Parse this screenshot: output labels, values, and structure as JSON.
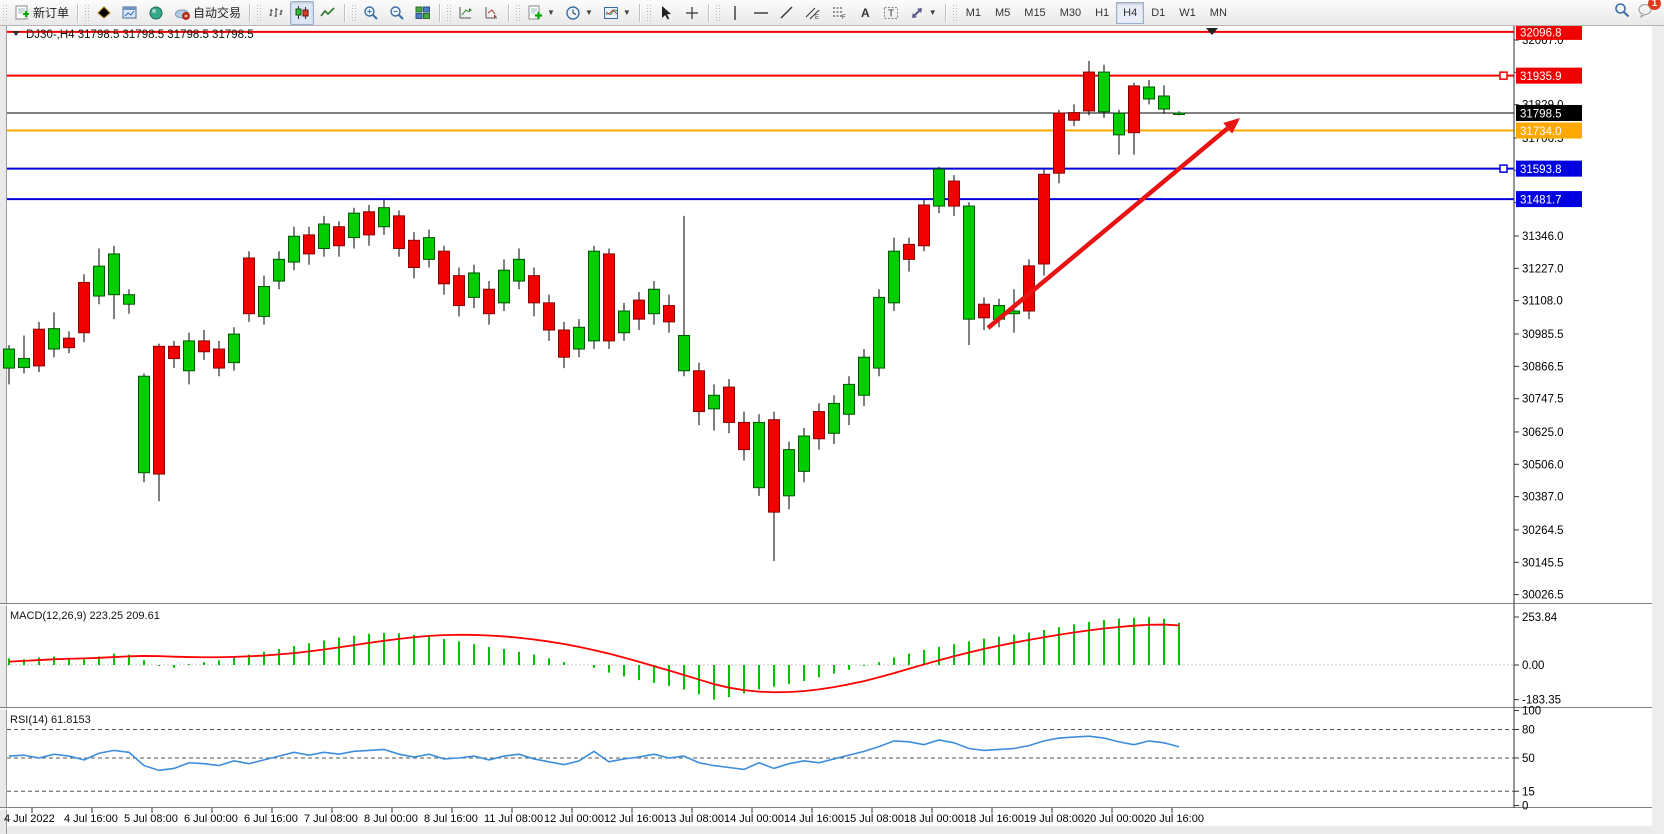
{
  "toolbar": {
    "groups": [
      {
        "items": [
          {
            "name": "new-order-button",
            "icon": "neworder",
            "label": "新订单"
          }
        ]
      },
      {
        "items": [
          {
            "name": "market-watch-button",
            "icon": "gold"
          },
          {
            "name": "data-window-button",
            "icon": "bluewin"
          },
          {
            "name": "navigator-button",
            "icon": "greenball"
          },
          {
            "name": "auto-trading-button",
            "icon": "cloud",
            "label": "自动交易"
          }
        ]
      },
      {
        "items": [
          {
            "name": "bar-chart-mode-button",
            "icon": "bars"
          },
          {
            "name": "candlestick-mode-button",
            "icon": "candles",
            "pressed": true
          },
          {
            "name": "line-chart-mode-button",
            "icon": "linechart"
          }
        ]
      },
      {
        "items": [
          {
            "name": "zoom-in-button",
            "icon": "zoomin"
          },
          {
            "name": "zoom-out-button",
            "icon": "zoomout"
          },
          {
            "name": "tile-windows-button",
            "icon": "tiles"
          }
        ]
      },
      {
        "items": [
          {
            "name": "arrange-charts-button",
            "icon": "arr1"
          },
          {
            "name": "shift-chart-button",
            "icon": "arr2"
          }
        ]
      },
      {
        "items": [
          {
            "name": "add-indicator-button",
            "icon": "addind",
            "caret": true
          },
          {
            "name": "period-button",
            "icon": "clock",
            "caret": true
          },
          {
            "name": "template-button",
            "icon": "template",
            "caret": true
          }
        ]
      },
      {
        "items": [
          {
            "name": "cursor-tool-button",
            "icon": "cursor"
          },
          {
            "name": "crosshair-tool-button",
            "icon": "crosshair"
          }
        ]
      },
      {
        "items": [
          {
            "name": "vertical-line-tool-button",
            "icon": "vline"
          },
          {
            "name": "horizontal-line-tool-button",
            "icon": "hline"
          },
          {
            "name": "trendline-tool-button",
            "icon": "tline"
          },
          {
            "name": "channel-tool-button",
            "icon": "channel"
          },
          {
            "name": "fibonacci-tool-button",
            "icon": "fibo"
          },
          {
            "name": "text-tool-button",
            "icon": "textA"
          },
          {
            "name": "label-tool-button",
            "icon": "labelT"
          },
          {
            "name": "shapes-tool-button",
            "icon": "shapes",
            "caret": true
          }
        ]
      }
    ],
    "timeframes": [
      {
        "label": "M1"
      },
      {
        "label": "M5"
      },
      {
        "label": "M15"
      },
      {
        "label": "M30"
      },
      {
        "label": "H1"
      },
      {
        "label": "H4",
        "pressed": true
      },
      {
        "label": "D1"
      },
      {
        "label": "W1"
      },
      {
        "label": "MN"
      }
    ],
    "search_icon": "search",
    "chat_badge_count": "1"
  },
  "chart": {
    "title": "DJ30-,H4  31798.5 31798.5 31798.5 31798.5",
    "symbol": "DJ30-",
    "timeframe": "H4",
    "colors": {
      "bull": "#00ce00",
      "bull_border": "#005500",
      "bear": "#f20000",
      "bear_border": "#8e0000",
      "wick": "#000000",
      "macd_hist": "#00c400",
      "macd_signal": "#ff0000",
      "rsi_line": "#3e8edd",
      "arrow": "#e81414"
    }
  },
  "levels": [
    {
      "price": 32096.8,
      "label": "32096.8",
      "color": "#f00000",
      "badge_bg": "#f00000",
      "width": 2,
      "marker": false
    },
    {
      "price": 31935.9,
      "label": "31935.9",
      "color": "#f00000",
      "badge_bg": "#f00000",
      "width": 2,
      "marker": true
    },
    {
      "price": 31798.5,
      "label": "31798.5",
      "color": "#000000",
      "badge_bg": "#000000",
      "width": 1,
      "marker": false
    },
    {
      "price": 31734.0,
      "label": "31734.0",
      "color": "#ffa800",
      "badge_bg": "#ffa800",
      "width": 2,
      "marker": false
    },
    {
      "price": 31593.8,
      "label": "31593.8",
      "color": "#0000e0",
      "badge_bg": "#0000e0",
      "width": 2,
      "marker": true
    },
    {
      "price": 31481.7,
      "label": "31481.7",
      "color": "#0000e0",
      "badge_bg": "#0000e0",
      "width": 2,
      "marker": false
    }
  ],
  "price_axis_ticks": [
    32067.0,
    31948.0,
    31829.0,
    31706.5,
    31587.5,
    31468.5,
    31346.0,
    31227.0,
    31108.0,
    30985.5,
    30866.5,
    30747.5,
    30625.0,
    30506.0,
    30387.0,
    30264.5,
    30145.5,
    30026.5
  ],
  "time_axis_labels": [
    "4 Jul 2022",
    "4 Jul 16:00",
    "5 Jul 08:00",
    "6 Jul 00:00",
    "6 Jul 16:00",
    "7 Jul 08:00",
    "8 Jul 00:00",
    "8 Jul 16:00",
    "11 Jul 08:00",
    "12 Jul 00:00",
    "12 Jul 16:00",
    "13 Jul 08:00",
    "14 Jul 00:00",
    "14 Jul 16:00",
    "15 Jul 08:00",
    "18 Jul 00:00",
    "18 Jul 16:00",
    "19 Jul 08:00",
    "20 Jul 00:00",
    "20 Jul 16:00"
  ],
  "chart_data": {
    "type": "candlestick",
    "symbol": "DJ30-",
    "timeframe": "H4",
    "current_price": 31798.5,
    "ohlc": [
      [
        30860,
        30945,
        30800,
        30930
      ],
      [
        30862,
        30980,
        30840,
        30895
      ],
      [
        31003,
        31030,
        30845,
        30868
      ],
      [
        30930,
        31065,
        30900,
        31005
      ],
      [
        30970,
        30995,
        30915,
        30935
      ],
      [
        31175,
        31205,
        30955,
        30990
      ],
      [
        31125,
        31300,
        31095,
        31235
      ],
      [
        31130,
        31310,
        31040,
        31280
      ],
      [
        31095,
        31150,
        31060,
        31130
      ],
      [
        30475,
        30840,
        30440,
        30830
      ],
      [
        30940,
        30950,
        30370,
        30470
      ],
      [
        30940,
        30960,
        30860,
        30895
      ],
      [
        30850,
        30990,
        30800,
        30960
      ],
      [
        30960,
        31000,
        30890,
        30920
      ],
      [
        30930,
        30960,
        30830,
        30860
      ],
      [
        30880,
        31010,
        30850,
        30985
      ],
      [
        31265,
        31290,
        31030,
        31060
      ],
      [
        31050,
        31200,
        31020,
        31160
      ],
      [
        31180,
        31290,
        31150,
        31260
      ],
      [
        31250,
        31380,
        31220,
        31345
      ],
      [
        31350,
        31380,
        31240,
        31280
      ],
      [
        31300,
        31420,
        31270,
        31390
      ],
      [
        31380,
        31400,
        31270,
        31310
      ],
      [
        31340,
        31450,
        31300,
        31430
      ],
      [
        31435,
        31460,
        31310,
        31350
      ],
      [
        31380,
        31480,
        31350,
        31450
      ],
      [
        31420,
        31440,
        31270,
        31300
      ],
      [
        31330,
        31360,
        31190,
        31230
      ],
      [
        31260,
        31370,
        31230,
        31340
      ],
      [
        31290,
        31310,
        31130,
        31170
      ],
      [
        31200,
        31230,
        31050,
        31090
      ],
      [
        31120,
        31240,
        31080,
        31210
      ],
      [
        31150,
        31180,
        31020,
        31060
      ],
      [
        31100,
        31260,
        31070,
        31220
      ],
      [
        31180,
        31300,
        31150,
        31260
      ],
      [
        31200,
        31230,
        31050,
        31100
      ],
      [
        31100,
        31130,
        30960,
        31000
      ],
      [
        31000,
        31030,
        30860,
        30900
      ],
      [
        30930,
        31040,
        30900,
        31010
      ],
      [
        30960,
        31310,
        30930,
        31290
      ],
      [
        31280,
        31300,
        30930,
        30960
      ],
      [
        30990,
        31100,
        30960,
        31070
      ],
      [
        31110,
        31140,
        31000,
        31040
      ],
      [
        31060,
        31180,
        31020,
        31150
      ],
      [
        31090,
        31130,
        30990,
        31030
      ],
      [
        30850,
        31420,
        30830,
        30980
      ],
      [
        30850,
        30880,
        30650,
        30700
      ],
      [
        30710,
        30800,
        30630,
        30760
      ],
      [
        30790,
        30820,
        30620,
        30660
      ],
      [
        30660,
        30700,
        30520,
        30560
      ],
      [
        30420,
        30690,
        30390,
        30660
      ],
      [
        30670,
        30700,
        30150,
        30330
      ],
      [
        30390,
        30590,
        30340,
        30560
      ],
      [
        30480,
        30640,
        30440,
        30610
      ],
      [
        30700,
        30730,
        30560,
        30600
      ],
      [
        30620,
        30760,
        30580,
        30730
      ],
      [
        30690,
        30830,
        30650,
        30800
      ],
      [
        30760,
        30930,
        30720,
        30900
      ],
      [
        30860,
        31150,
        30830,
        31120
      ],
      [
        31100,
        31340,
        31070,
        31290
      ],
      [
        31315,
        31340,
        31215,
        31260
      ],
      [
        31460,
        31480,
        31290,
        31310
      ],
      [
        31456,
        31600,
        31430,
        31592
      ],
      [
        31548,
        31570,
        31420,
        31456
      ],
      [
        31040,
        31470,
        30945,
        31456
      ],
      [
        31095,
        31120,
        31000,
        31045
      ],
      [
        31040,
        31115,
        31010,
        31090
      ],
      [
        31060,
        31150,
        30990,
        31070
      ],
      [
        31236,
        31260,
        31040,
        31070
      ],
      [
        31573,
        31590,
        31200,
        31243
      ],
      [
        31798,
        31810,
        31540,
        31577
      ],
      [
        31800,
        31830,
        31750,
        31772
      ],
      [
        31949,
        31990,
        31790,
        31806
      ],
      [
        31803,
        31976,
        31780,
        31949
      ],
      [
        31718,
        31810,
        31645,
        31798
      ],
      [
        31898,
        31910,
        31645,
        31726
      ],
      [
        31850,
        31920,
        31830,
        31894
      ],
      [
        31813,
        31900,
        31795,
        31861
      ],
      [
        31795,
        31805,
        31790,
        31798.5
      ]
    ],
    "macd": {
      "label": "MACD(12,26,9) 223.25 209.61",
      "value": 223.25,
      "signal_value": 209.61,
      "scale_ticks": [
        253.84,
        0.0,
        -183.35
      ],
      "histogram": [
        35,
        30,
        40,
        45,
        35,
        30,
        45,
        60,
        55,
        25,
        -5,
        -15,
        5,
        15,
        25,
        40,
        55,
        70,
        85,
        100,
        115,
        130,
        145,
        155,
        165,
        170,
        168,
        160,
        150,
        138,
        125,
        110,
        95,
        85,
        70,
        55,
        35,
        15,
        0,
        -15,
        -40,
        -60,
        -80,
        -95,
        -110,
        -130,
        -155,
        -183.35,
        -170,
        -150,
        -130,
        -115,
        -100,
        -85,
        -65,
        -45,
        -25,
        -5,
        15,
        40,
        60,
        80,
        95,
        110,
        125,
        140,
        150,
        160,
        172,
        185,
        200,
        215,
        228,
        238,
        246,
        250,
        253.84,
        245,
        223.25
      ],
      "signal": [
        18,
        22,
        26,
        30,
        33,
        35,
        38,
        42,
        46,
        48,
        47,
        44,
        42,
        41,
        41,
        43,
        46,
        50,
        56,
        63,
        72,
        82,
        93,
        105,
        117,
        128,
        138,
        147,
        154,
        158,
        160,
        159,
        156,
        151,
        144,
        135,
        124,
        111,
        96,
        79,
        60,
        39,
        17,
        -6,
        -29,
        -53,
        -77,
        -101,
        -120,
        -133,
        -141,
        -144,
        -143,
        -138,
        -129,
        -117,
        -102,
        -85,
        -65,
        -43,
        -20,
        3,
        25,
        46,
        66,
        85,
        102,
        118,
        133,
        147,
        160,
        172,
        183,
        193,
        201,
        208,
        213,
        214,
        209.61
      ]
    },
    "rsi": {
      "label": "RSI(14) 61.8153",
      "value": 61.8153,
      "scale_ticks": [
        100,
        80,
        50,
        15,
        0
      ],
      "dashed_levels": [
        80,
        50,
        15
      ],
      "series": [
        52,
        53,
        50,
        54,
        52,
        48,
        55,
        58,
        56,
        42,
        37,
        39,
        45,
        44,
        42,
        47,
        44,
        48,
        52,
        56,
        53,
        56,
        54,
        57,
        58,
        59,
        54,
        51,
        54,
        49,
        50,
        52,
        48,
        52,
        54,
        49,
        46,
        43,
        47,
        57,
        46,
        49,
        51,
        54,
        50,
        52,
        45,
        42,
        40,
        38,
        45,
        39,
        44,
        47,
        45,
        49,
        53,
        57,
        62,
        68,
        67,
        64,
        69,
        66,
        60,
        58,
        59,
        60,
        63,
        68,
        71,
        72,
        73,
        71,
        67,
        64,
        68,
        66,
        61.82
      ]
    },
    "annotations": [
      {
        "type": "arrow",
        "from_bar": 65,
        "from_price": 30950,
        "to_bar": 82,
        "to_price": 31724,
        "color": "#e81414"
      }
    ]
  }
}
